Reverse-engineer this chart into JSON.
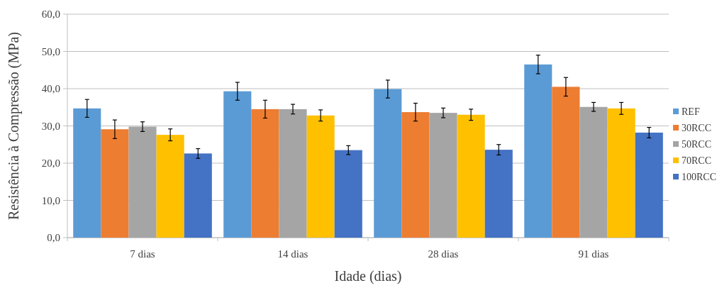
{
  "chart_data": {
    "type": "bar",
    "xlabel": "Idade (dias)",
    "ylabel": "Resistência à Compressão (MPa)",
    "categories": [
      "7 dias",
      "14 dias",
      "28 dias",
      "91 dias"
    ],
    "series": [
      {
        "name": "REF",
        "color": "#5b9bd5",
        "values": [
          34.7,
          39.3,
          39.9,
          46.5
        ],
        "errors": [
          2.4,
          2.4,
          2.4,
          2.5
        ]
      },
      {
        "name": "30RCC",
        "color": "#ed7d31",
        "values": [
          29.1,
          34.5,
          33.7,
          40.5
        ],
        "errors": [
          2.5,
          2.4,
          2.4,
          2.5
        ]
      },
      {
        "name": "50RCC",
        "color": "#a5a5a5",
        "values": [
          29.8,
          34.5,
          33.5,
          35.1
        ],
        "errors": [
          1.3,
          1.3,
          1.3,
          1.2
        ]
      },
      {
        "name": "70RCC",
        "color": "#ffc000",
        "values": [
          27.6,
          32.8,
          33.0,
          34.7
        ],
        "errors": [
          1.6,
          1.5,
          1.5,
          1.6
        ]
      },
      {
        "name": "100RCC",
        "color": "#4472c4",
        "values": [
          22.6,
          23.5,
          23.6,
          28.2
        ],
        "errors": [
          1.3,
          1.2,
          1.4,
          1.4
        ]
      }
    ],
    "ylim": [
      0,
      60
    ],
    "yticks": [
      {
        "value": 0,
        "label": "0,0"
      },
      {
        "value": 10,
        "label": "10,0"
      },
      {
        "value": 20,
        "label": "20,0"
      },
      {
        "value": 30,
        "label": "30,0"
      },
      {
        "value": 40,
        "label": "40,0"
      },
      {
        "value": 50,
        "label": "50,0"
      },
      {
        "value": 60,
        "label": "60,0"
      }
    ],
    "grid": "y",
    "legend": "right"
  }
}
